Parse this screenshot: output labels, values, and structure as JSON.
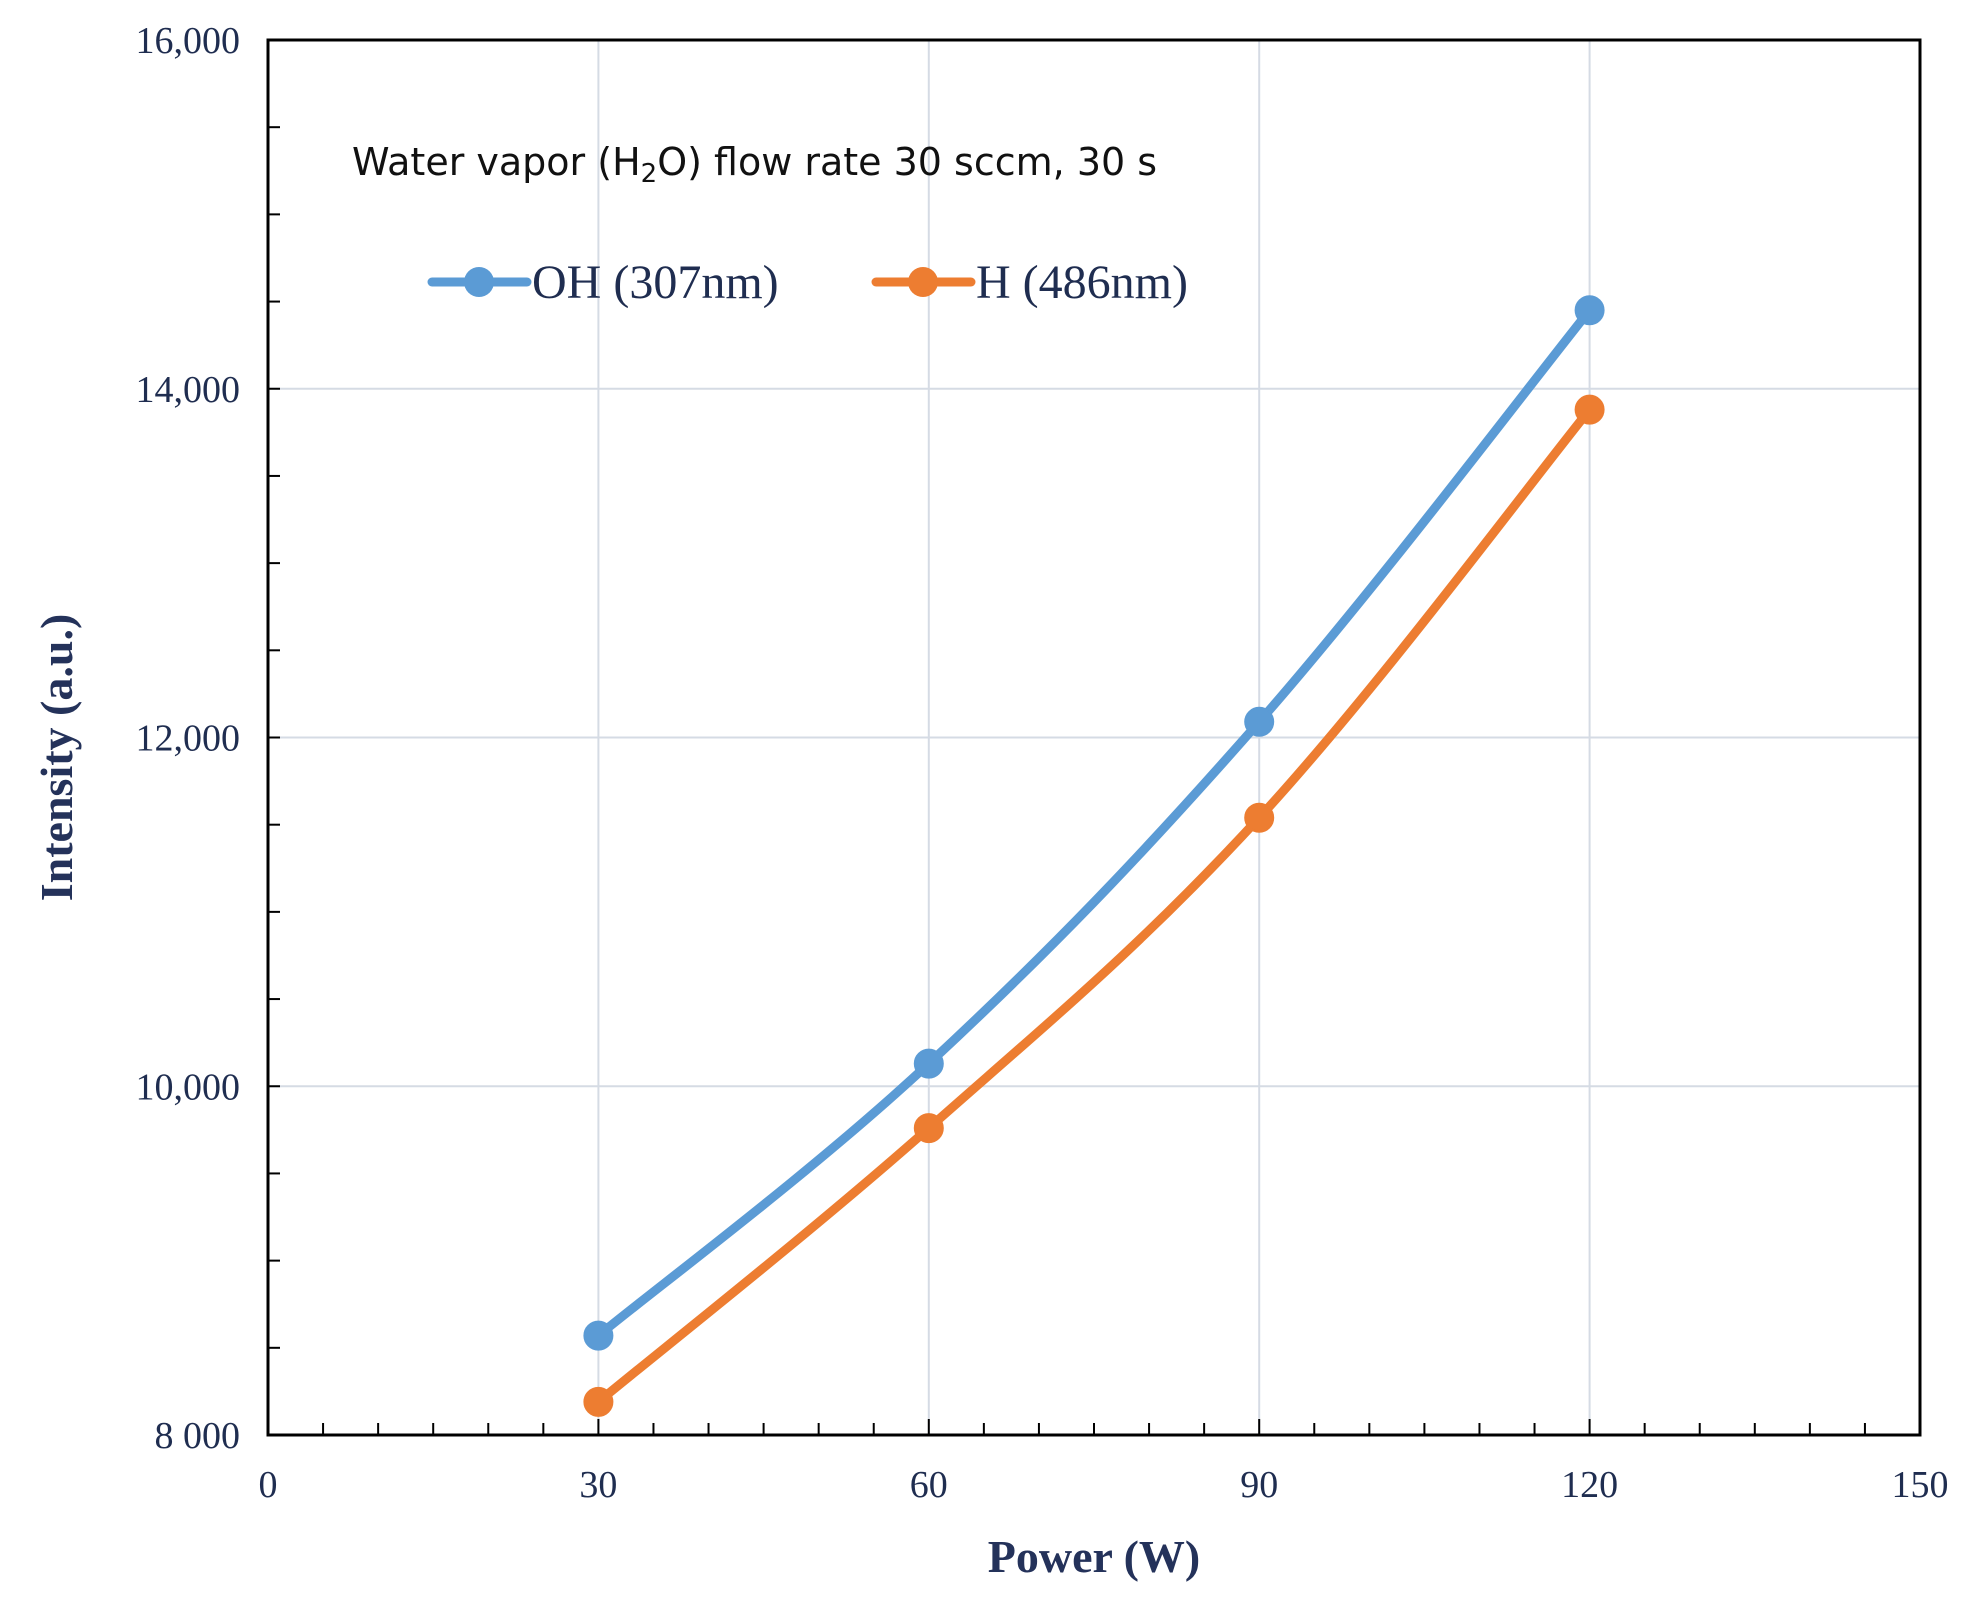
{
  "chart_data": {
    "type": "line",
    "title": "",
    "xlabel": "Power (W)",
    "ylabel": "Intensity (a.u.)",
    "xlim": [
      0,
      150
    ],
    "ylim": [
      8000,
      16000
    ],
    "x_ticks": [
      0,
      30,
      60,
      90,
      120,
      150
    ],
    "x_tick_labels": [
      "0",
      "30",
      "60",
      "90",
      "120",
      "150"
    ],
    "y_ticks": [
      8000,
      10000,
      12000,
      14000,
      16000
    ],
    "y_tick_labels": [
      "8 000",
      "10,000",
      "12,000",
      "14,000",
      "16,000"
    ],
    "grid": true,
    "annotation": {
      "prefix": "Water vapor (H",
      "subscript": "2",
      "suffix": "O) flow rate  30 sccm, 30 s"
    },
    "legend_position": "top-left",
    "series": [
      {
        "name": "OH (307nm)",
        "color": "#5b9bd5",
        "x": [
          30,
          60,
          90,
          120
        ],
        "y": [
          8570,
          10130,
          12090,
          14450
        ]
      },
      {
        "name": "H (486nm)",
        "color": "#ed7d31",
        "x": [
          30,
          60,
          90,
          120
        ],
        "y": [
          8190,
          9760,
          11540,
          13880
        ]
      }
    ]
  }
}
